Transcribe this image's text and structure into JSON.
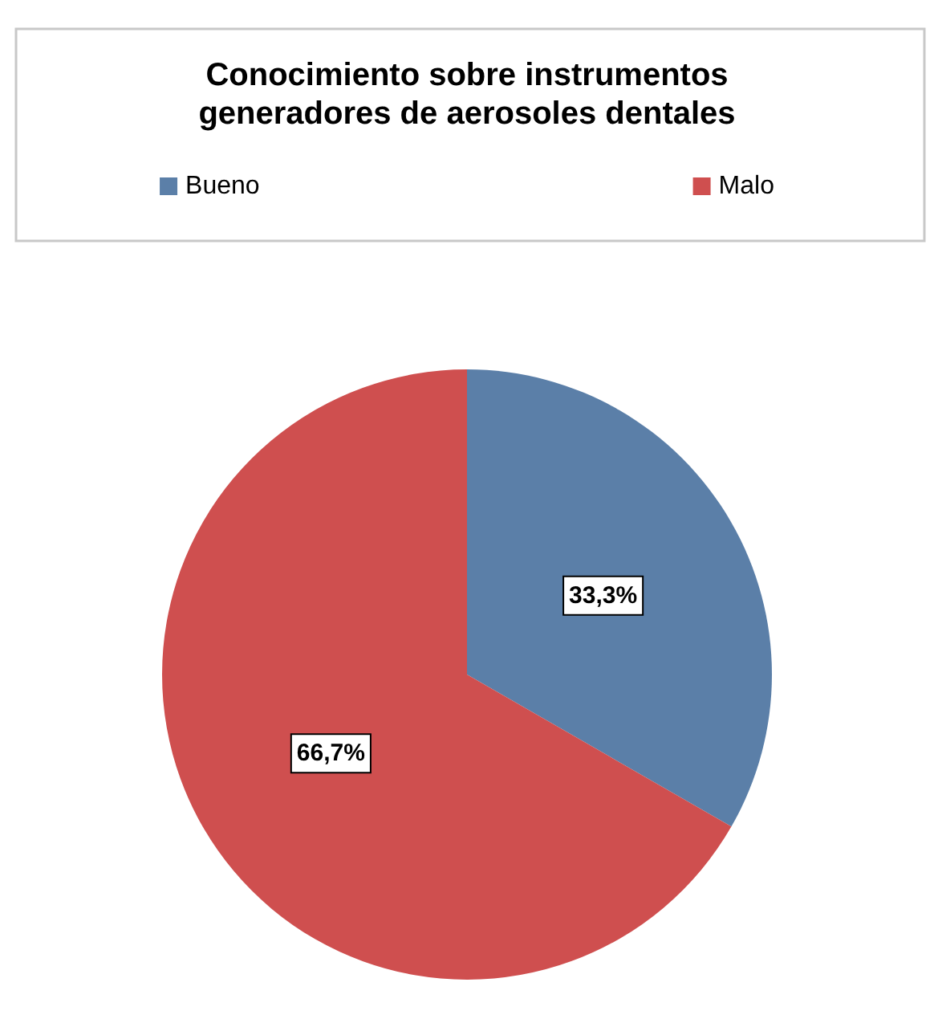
{
  "chart_data": {
    "type": "pie",
    "title": "Conocimiento sobre instrumentos\ngeneradores de aerosoles dentales",
    "categories": [
      "Bueno",
      "Malo"
    ],
    "values": [
      33.3,
      66.7
    ],
    "colors": [
      "#5b7fa8",
      "#cf4f4f"
    ],
    "value_labels": [
      "33,3%",
      "66,7%"
    ],
    "legend": "top"
  }
}
